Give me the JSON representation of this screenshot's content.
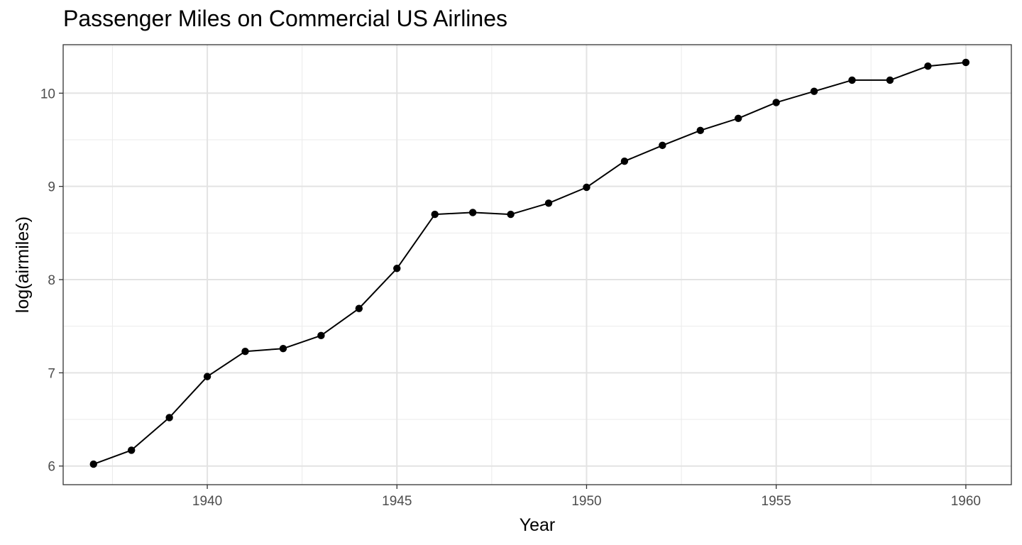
{
  "chart_data": {
    "type": "line",
    "title": "Passenger Miles on Commercial US Airlines",
    "xlabel": "Year",
    "ylabel": "log(airmiles)",
    "xlim": [
      1936.2,
      1961.2
    ],
    "ylim": [
      5.8,
      10.52
    ],
    "x_ticks": [
      1940,
      1945,
      1950,
      1955,
      1960
    ],
    "x_tick_labels": [
      "1940",
      "1945",
      "1950",
      "1955",
      "1960"
    ],
    "y_ticks": [
      6,
      7,
      8,
      9,
      10
    ],
    "y_tick_labels": [
      "6",
      "7",
      "8",
      "9",
      "10"
    ],
    "grid": true,
    "series": [
      {
        "x": [
          1937,
          1938,
          1939,
          1940,
          1941,
          1942,
          1943,
          1944,
          1945,
          1946,
          1947,
          1948,
          1949,
          1950,
          1951,
          1952,
          1953,
          1954,
          1955,
          1956,
          1957,
          1958,
          1959,
          1960
        ],
        "values": [
          6.02,
          6.17,
          6.52,
          6.96,
          7.23,
          7.26,
          7.4,
          7.69,
          8.12,
          8.7,
          8.72,
          8.7,
          8.82,
          8.99,
          9.27,
          9.44,
          9.6,
          9.73,
          9.9,
          10.02,
          10.14,
          10.14,
          10.29,
          10.33
        ]
      }
    ]
  }
}
